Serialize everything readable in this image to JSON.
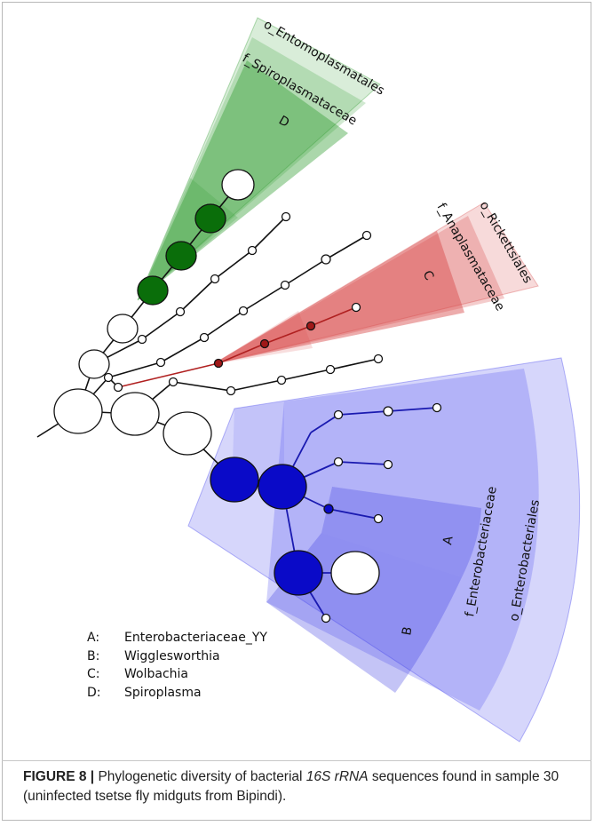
{
  "figure": {
    "clade_labels": {
      "order_top": "o_Entomoplasmatales",
      "family_top": "f_Spiroplasmataceae",
      "order_right": "o_Rickettsiales",
      "family_right": "f_Anaplasmataceae",
      "order_bottom": "o_Enterobacteriales",
      "family_bottom": "f_Enterobacteriaceae"
    },
    "sector_letters": {
      "a": "A",
      "b": "B",
      "c": "C",
      "d": "D"
    },
    "colors": {
      "green_fill": "#2e9a2e",
      "red_fill": "#d84848",
      "blue_fill": "#5a5af0",
      "blue_node": "#0a0ac8",
      "green_node": "#0a6e0a",
      "red_node": "#a01818",
      "branch": "#111111"
    }
  },
  "legend": [
    {
      "key": "A:",
      "value": "Enterobacteriaceae_YY"
    },
    {
      "key": "B:",
      "value": "Wigglesworthia"
    },
    {
      "key": "C:",
      "value": "Wolbachia"
    },
    {
      "key": "D:",
      "value": "Spiroplasma"
    }
  ],
  "caption": {
    "label": "FIGURE 8 |",
    "text_1": " Phylogenetic diversity of bacterial ",
    "italic": "16S rRNA",
    "text_2": " sequences found in sample 30 (uninfected tsetse fly midguts from Bipindi)."
  }
}
